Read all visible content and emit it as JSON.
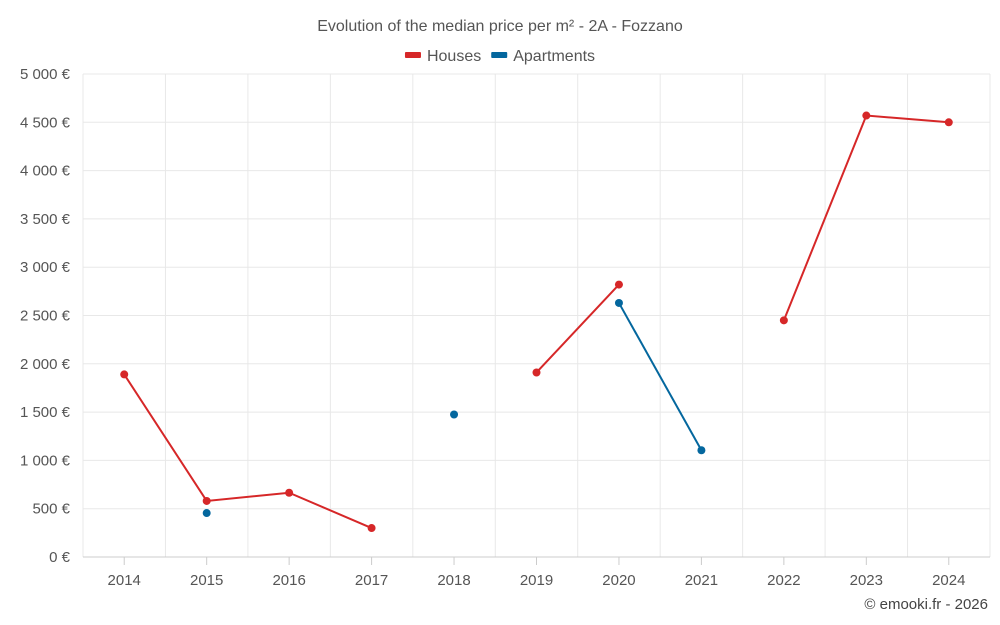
{
  "chart_data": {
    "type": "line",
    "title": "Evolution of the median price per m² - 2A - Fozzano",
    "xlabel": "",
    "ylabel": "",
    "categories": [
      "2014",
      "2015",
      "2016",
      "2017",
      "2018",
      "2019",
      "2020",
      "2021",
      "2022",
      "2023",
      "2024"
    ],
    "ylim": [
      0,
      5000
    ],
    "yticks": [
      0,
      500,
      1000,
      1500,
      2000,
      2500,
      3000,
      3500,
      4000,
      4500,
      5000
    ],
    "ytick_labels": [
      "0 €",
      "500 €",
      "1 000 €",
      "1 500 €",
      "2 000 €",
      "2 500 €",
      "3 000 €",
      "3 500 €",
      "4 000 €",
      "4 500 €",
      "5 000 €"
    ],
    "grid": true,
    "legend_position": "top-center",
    "series": [
      {
        "name": "Houses",
        "color": "#d62728",
        "values": [
          1890,
          580,
          665,
          300,
          null,
          1910,
          2820,
          null,
          2450,
          4570,
          4500
        ]
      },
      {
        "name": "Apartments",
        "color": "#04679e",
        "values": [
          null,
          455,
          null,
          null,
          1475,
          null,
          2630,
          1105,
          null,
          null,
          null
        ]
      }
    ],
    "credit": "© emooki.fr - 2026"
  }
}
